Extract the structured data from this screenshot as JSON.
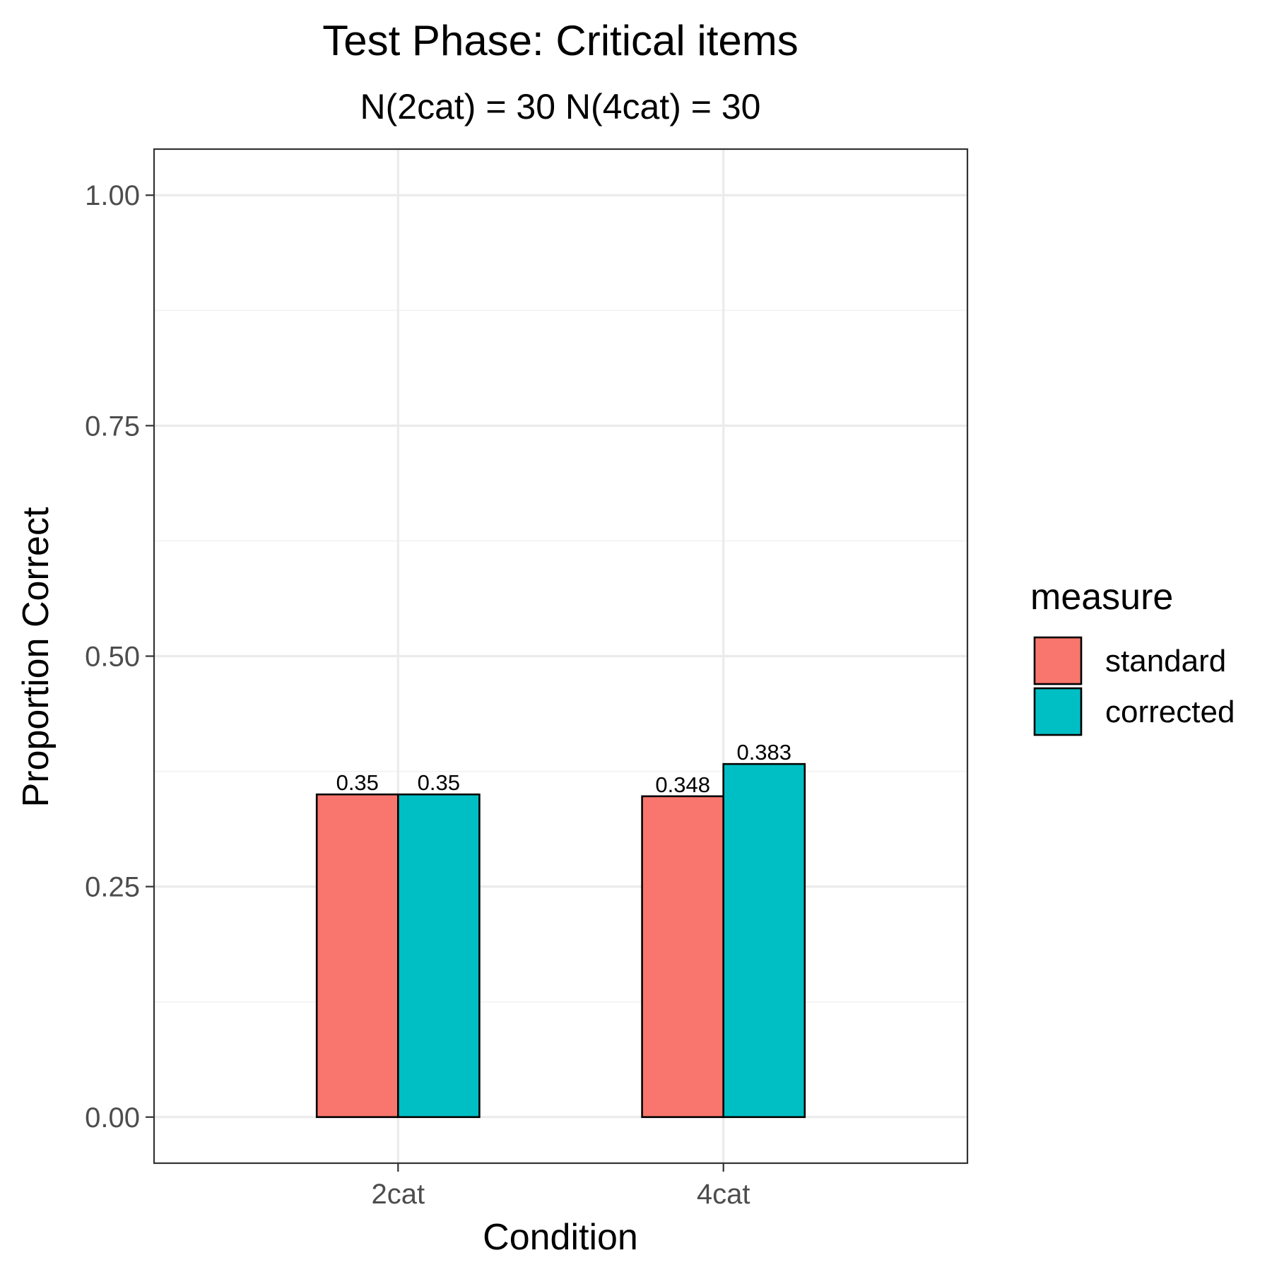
{
  "chart_data": {
    "type": "bar",
    "title": "Test Phase: Critical items",
    "subtitle": "N(2cat) = 30  N(4cat) = 30",
    "xlabel": "Condition",
    "ylabel": "Proportion Correct",
    "categories": [
      "2cat",
      "4cat"
    ],
    "ylim": [
      -0.05,
      1.05
    ],
    "yticks": [
      0.0,
      0.25,
      0.5,
      0.75,
      1.0
    ],
    "ytick_labels": [
      "0.00",
      "0.25",
      "0.50",
      "0.75",
      "1.00"
    ],
    "grid": true,
    "legend": {
      "title": "measure",
      "placement": "right"
    },
    "series": [
      {
        "name": "standard",
        "color": "#F8766D",
        "values": [
          0.35,
          0.348
        ],
        "labels": [
          "0.35",
          "0.348"
        ]
      },
      {
        "name": "corrected",
        "color": "#00BFC4",
        "values": [
          0.35,
          0.383
        ],
        "labels": [
          "0.35",
          "0.383"
        ]
      }
    ]
  }
}
